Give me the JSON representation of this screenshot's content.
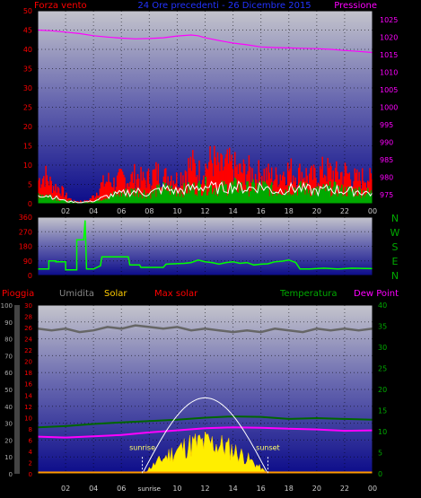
{
  "header": {
    "left_label": "Forza vento",
    "center_label": "24 Ore precedenti - 26 Dicembre 2015",
    "right_label": "Pressione"
  },
  "panel_wind": {
    "left_axis_ticks": [
      "0",
      "5",
      "10",
      "15",
      "20",
      "25",
      "30",
      "35",
      "40",
      "45",
      "50"
    ],
    "right_axis_ticks": [
      "975",
      "980",
      "985",
      "990",
      "995",
      "1000",
      "1005",
      "1010",
      "1015",
      "1020",
      "1025"
    ],
    "x_ticks": [
      "02",
      "04",
      "06",
      "08",
      "10",
      "12",
      "14",
      "16",
      "18",
      "20",
      "22",
      "00"
    ],
    "wind_ylim": [
      0,
      50
    ],
    "pressure_ylim": [
      972.5,
      1027.5
    ],
    "pressure_series": [
      [
        0,
        1022.0
      ],
      [
        1,
        1021.8
      ],
      [
        2,
        1021.4
      ],
      [
        3,
        1021.0
      ],
      [
        4,
        1020.4
      ],
      [
        5,
        1020.0
      ],
      [
        6,
        1019.7
      ],
      [
        7,
        1019.5
      ],
      [
        8,
        1019.6
      ],
      [
        9,
        1019.8
      ],
      [
        10,
        1020.3
      ],
      [
        11,
        1020.6
      ],
      [
        11.5,
        1020.4
      ],
      [
        12,
        1019.8
      ],
      [
        13,
        1019.0
      ],
      [
        14,
        1018.3
      ],
      [
        15,
        1017.8
      ],
      [
        16,
        1017.2
      ],
      [
        17,
        1017.0
      ],
      [
        18,
        1016.9
      ],
      [
        19,
        1016.8
      ],
      [
        20,
        1016.7
      ],
      [
        21,
        1016.5
      ],
      [
        22,
        1016.2
      ],
      [
        23,
        1015.9
      ],
      [
        24,
        1015.6
      ]
    ],
    "gust_envelope": [
      [
        0,
        9
      ],
      [
        0.5,
        11
      ],
      [
        1,
        7
      ],
      [
        1.5,
        6
      ],
      [
        2,
        3
      ],
      [
        2.5,
        1
      ],
      [
        3,
        1
      ],
      [
        3.5,
        1
      ],
      [
        4,
        3
      ],
      [
        4.5,
        7
      ],
      [
        5,
        9
      ],
      [
        5.5,
        8
      ],
      [
        6,
        10
      ],
      [
        6.5,
        9
      ],
      [
        7,
        11
      ],
      [
        7.5,
        9
      ],
      [
        8,
        10
      ],
      [
        8.5,
        12
      ],
      [
        9,
        10
      ],
      [
        9.5,
        11
      ],
      [
        10,
        9
      ],
      [
        10.5,
        13
      ],
      [
        11,
        15
      ],
      [
        11.5,
        12
      ],
      [
        12,
        14
      ],
      [
        12.5,
        17
      ],
      [
        13,
        13
      ],
      [
        13.5,
        15
      ],
      [
        14,
        14
      ],
      [
        14.5,
        12
      ],
      [
        15,
        13
      ],
      [
        15.5,
        11
      ],
      [
        16,
        12
      ],
      [
        16.5,
        11
      ],
      [
        17,
        10
      ],
      [
        17.5,
        12
      ],
      [
        18,
        13
      ],
      [
        18.5,
        11
      ],
      [
        19,
        12
      ],
      [
        19.5,
        10
      ],
      [
        20,
        11
      ],
      [
        20.5,
        13
      ],
      [
        21,
        12
      ],
      [
        21.5,
        11
      ],
      [
        22,
        12
      ],
      [
        22.5,
        10
      ],
      [
        23,
        9
      ],
      [
        23.5,
        11
      ],
      [
        24,
        8
      ]
    ],
    "mean_envelope": [
      [
        0,
        4
      ],
      [
        1,
        3
      ],
      [
        2,
        1
      ],
      [
        3,
        0.5
      ],
      [
        4,
        1
      ],
      [
        5,
        3
      ],
      [
        6,
        4
      ],
      [
        7,
        5
      ],
      [
        8,
        4
      ],
      [
        9,
        6
      ],
      [
        10,
        5
      ],
      [
        11,
        6
      ],
      [
        12,
        7
      ],
      [
        13,
        6
      ],
      [
        14,
        7
      ],
      [
        15,
        6
      ],
      [
        16,
        7
      ],
      [
        17,
        5
      ],
      [
        18,
        6
      ],
      [
        19,
        6
      ],
      [
        20,
        5
      ],
      [
        21,
        6
      ],
      [
        22,
        5
      ],
      [
        23,
        5
      ],
      [
        24,
        4
      ]
    ],
    "colors": {
      "gust": "#ff0000",
      "mean": "#00aa00",
      "pressure": "#ff00ff",
      "trace": "#ffffff"
    }
  },
  "panel_direction": {
    "left_axis_ticks": [
      "0",
      "90",
      "180",
      "270",
      "360"
    ],
    "compass_labels": [
      "N",
      "W",
      "S",
      "E",
      "N"
    ],
    "ylim": [
      0,
      360
    ],
    "direction_series": [
      [
        0,
        40
      ],
      [
        0.8,
        40
      ],
      [
        0.8,
        90
      ],
      [
        1.3,
        90
      ],
      [
        1.3,
        85
      ],
      [
        2.0,
        85
      ],
      [
        2.0,
        35
      ],
      [
        2.8,
        35
      ],
      [
        2.8,
        220
      ],
      [
        3.3,
        220
      ],
      [
        3.4,
        340
      ],
      [
        3.5,
        40
      ],
      [
        4.0,
        40
      ],
      [
        4.5,
        60
      ],
      [
        4.6,
        115
      ],
      [
        6.5,
        115
      ],
      [
        6.6,
        65
      ],
      [
        7.3,
        65
      ],
      [
        7.4,
        50
      ],
      [
        9.0,
        50
      ],
      [
        9.2,
        70
      ],
      [
        10.5,
        75
      ],
      [
        11.0,
        80
      ],
      [
        11.5,
        95
      ],
      [
        12.0,
        85
      ],
      [
        12.5,
        80
      ],
      [
        13.0,
        70
      ],
      [
        13.5,
        80
      ],
      [
        14.0,
        85
      ],
      [
        14.5,
        75
      ],
      [
        15.0,
        80
      ],
      [
        15.5,
        65
      ],
      [
        16.0,
        70
      ],
      [
        16.5,
        72
      ],
      [
        17.0,
        85
      ],
      [
        17.5,
        88
      ],
      [
        18.0,
        95
      ],
      [
        18.5,
        80
      ],
      [
        18.8,
        40
      ],
      [
        19.5,
        40
      ],
      [
        20.5,
        45
      ],
      [
        21.5,
        40
      ],
      [
        22.5,
        45
      ],
      [
        24,
        42
      ]
    ],
    "color": "#00ff00"
  },
  "panel_rain": {
    "labels": {
      "rain": "Pioggia",
      "humidity": "Umidita",
      "solar": "Solar",
      "max_solar": "Max solar",
      "temperature": "Temperatura",
      "dew_point": "Dew Point"
    },
    "label_colors": {
      "rain": "#ff0000",
      "humidity": "#888888",
      "solar": "#ffcc00",
      "max_solar": "#ff0000",
      "temperature": "#00aa00",
      "dew_point": "#ff00ff"
    },
    "axis_humidity_ticks": [
      "0",
      "10",
      "20",
      "30",
      "40",
      "50",
      "60",
      "70",
      "80",
      "90",
      "100"
    ],
    "axis_rain_ticks": [
      "0",
      "2",
      "4",
      "6",
      "8",
      "10",
      "12",
      "14",
      "16",
      "18",
      "20",
      "22",
      "24",
      "26",
      "28",
      "30"
    ],
    "axis_temp_ticks": [
      "0",
      "5",
      "10",
      "15",
      "20",
      "25",
      "30",
      "35",
      "40"
    ],
    "x_ticks": [
      "02",
      "04",
      "06",
      "sunrise",
      "10",
      "12",
      "14",
      "16",
      "18",
      "20",
      "22",
      "00"
    ],
    "annotations": {
      "sunrise": "sunrise",
      "sunset": "sunset"
    },
    "humidity_series": [
      [
        0,
        86
      ],
      [
        1,
        85
      ],
      [
        2,
        86
      ],
      [
        3,
        84
      ],
      [
        4,
        85
      ],
      [
        5,
        87
      ],
      [
        6,
        86
      ],
      [
        7,
        88
      ],
      [
        8,
        87
      ],
      [
        9,
        86
      ],
      [
        10,
        87
      ],
      [
        11,
        85
      ],
      [
        12,
        86
      ],
      [
        13,
        85
      ],
      [
        14,
        84
      ],
      [
        15,
        85
      ],
      [
        16,
        84
      ],
      [
        17,
        86
      ],
      [
        18,
        85
      ],
      [
        19,
        84
      ],
      [
        20,
        86
      ],
      [
        21,
        85
      ],
      [
        22,
        86
      ],
      [
        23,
        85
      ],
      [
        24,
        86
      ]
    ],
    "temperature_series": [
      [
        0,
        11.0
      ],
      [
        2,
        11.3
      ],
      [
        4,
        11.8
      ],
      [
        6,
        12.2
      ],
      [
        8,
        12.5
      ],
      [
        10,
        12.8
      ],
      [
        12,
        13.3
      ],
      [
        14,
        13.6
      ],
      [
        16,
        13.5
      ],
      [
        18,
        13.0
      ],
      [
        20,
        13.2
      ],
      [
        22,
        13.0
      ],
      [
        24,
        12.8
      ]
    ],
    "dew_point_series": [
      [
        0,
        8.8
      ],
      [
        2,
        8.6
      ],
      [
        4,
        8.9
      ],
      [
        6,
        9.2
      ],
      [
        8,
        9.8
      ],
      [
        10,
        10.3
      ],
      [
        12,
        10.8
      ],
      [
        14,
        11.0
      ],
      [
        16,
        10.9
      ],
      [
        18,
        10.7
      ],
      [
        20,
        10.5
      ],
      [
        22,
        10.2
      ],
      [
        24,
        10.3
      ]
    ],
    "temp_ylim": [
      0,
      40
    ],
    "humidity_ylim": [
      0,
      100
    ],
    "solar_peak_fraction": 0.27,
    "max_solar_peak_fraction": 0.45,
    "sunrise_hour": 7.5,
    "sunset_hour": 16.5
  }
}
